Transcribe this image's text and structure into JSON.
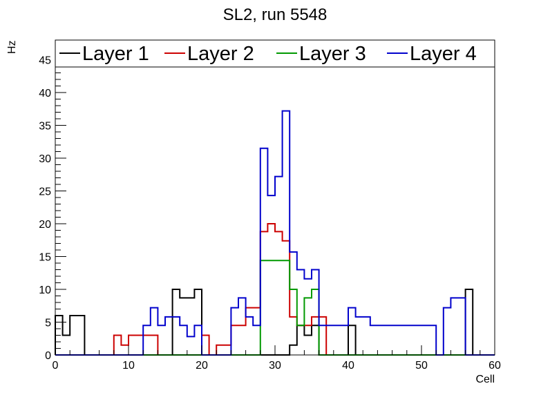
{
  "chart_data": {
    "type": "line",
    "title": "SL2, run 5548",
    "xlabel": "Cell",
    "ylabel": "Hz",
    "xlim": [
      0,
      60
    ],
    "ylim": [
      0,
      48
    ],
    "x_ticks": [
      0,
      10,
      20,
      30,
      40,
      50,
      60
    ],
    "y_ticks": [
      0,
      5,
      10,
      15,
      20,
      25,
      30,
      35,
      40,
      45
    ],
    "bin_width": 1,
    "grid": false,
    "legend_placement": "top",
    "series": [
      {
        "name": "Layer 1",
        "color": "#000000",
        "values": [
          6,
          3,
          6,
          6,
          0,
          0,
          0,
          0,
          0,
          0,
          0,
          0,
          0,
          0,
          0,
          0,
          10,
          8.7,
          8.7,
          10,
          0,
          0,
          0,
          0,
          0,
          0,
          0,
          0,
          0,
          0,
          0,
          0,
          1.5,
          4.5,
          3,
          4.5,
          0,
          0,
          0,
          0,
          4.5,
          0,
          0,
          0,
          0,
          0,
          0,
          0,
          0,
          0,
          0,
          0,
          0,
          0,
          0,
          0,
          10,
          0,
          0,
          0
        ]
      },
      {
        "name": "Layer 2",
        "color": "#CC0000",
        "values": [
          0,
          0,
          0,
          0,
          0,
          0,
          0,
          0,
          3,
          1.5,
          3,
          3,
          3,
          3,
          0,
          0,
          0,
          0,
          0,
          0,
          3,
          0,
          1.5,
          1.5,
          4.5,
          4.5,
          7.2,
          7.2,
          18.8,
          20,
          18.8,
          17.4,
          5.8,
          4.5,
          4.5,
          5.8,
          5.8,
          0,
          0,
          0,
          0,
          0,
          0,
          0,
          0,
          0,
          0,
          0,
          0,
          0,
          0,
          0,
          0,
          0,
          0,
          0,
          0,
          0,
          0,
          0
        ]
      },
      {
        "name": "Layer 3",
        "color": "#009900",
        "values": [
          0,
          0,
          0,
          0,
          0,
          0,
          0,
          0,
          0,
          0,
          0,
          0,
          0,
          0,
          0,
          0,
          0,
          0,
          0,
          0,
          0,
          0,
          0,
          0,
          0,
          0,
          0,
          0,
          14.4,
          14.4,
          14.4,
          14.4,
          10,
          4.5,
          8.7,
          10,
          0,
          0,
          0,
          0,
          0,
          0,
          0,
          0,
          0,
          0,
          0,
          0,
          0,
          0,
          0,
          0,
          0,
          0,
          0,
          0,
          0,
          0,
          0,
          0
        ]
      },
      {
        "name": "Layer 4",
        "color": "#0000CC",
        "values": [
          0,
          0,
          0,
          0,
          0,
          0,
          0,
          0,
          0,
          0,
          0,
          0,
          4.5,
          7.2,
          4.5,
          5.8,
          5.8,
          4.5,
          2.8,
          4.5,
          0,
          0,
          0,
          0,
          7.2,
          8.7,
          5.8,
          4.5,
          31.5,
          24.3,
          27.2,
          37.2,
          15.7,
          13,
          11.6,
          13,
          4.5,
          4.5,
          4.5,
          4.5,
          7.2,
          5.8,
          5.8,
          4.5,
          4.5,
          4.5,
          4.5,
          4.5,
          4.5,
          4.5,
          4.5,
          4.5,
          0,
          7.2,
          8.7,
          8.7,
          0,
          0,
          0,
          0
        ]
      }
    ]
  }
}
